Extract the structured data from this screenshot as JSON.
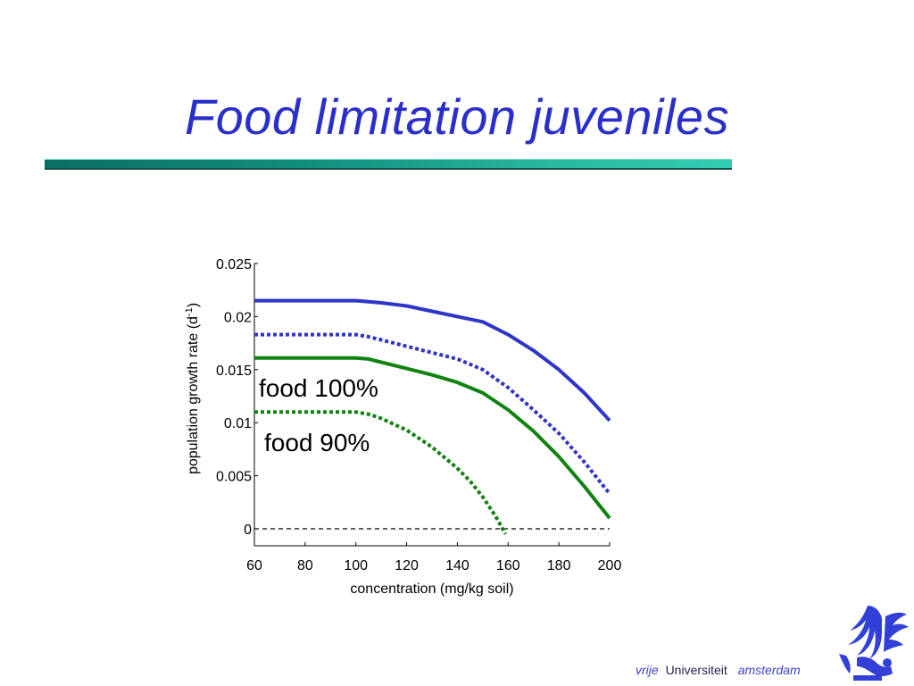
{
  "slide": {
    "title": "Food limitation juveniles"
  },
  "footer": {
    "vrije": "vrije",
    "universiteit": "Universiteit",
    "amsterdam": "amsterdam"
  },
  "logo_icon": "university-griffin-emblem",
  "chart_data": {
    "type": "line",
    "xlabel": "concentration (mg/kg soil)",
    "ylabel_main": "population growth rate (d",
    "ylabel_sup": "-1",
    "ylabel_end": ")",
    "xlim": [
      60,
      200
    ],
    "ylim": [
      -0.0015,
      0.025
    ],
    "xticks": [
      60,
      80,
      100,
      120,
      140,
      160,
      180,
      200
    ],
    "yticks": [
      0,
      0.005,
      0.01,
      0.015,
      0.02,
      0.025
    ],
    "xtick_labels": [
      "60",
      "80",
      "100",
      "120",
      "140",
      "160",
      "180",
      "200"
    ],
    "ytick_labels": [
      "0",
      "0.005",
      "0.01",
      "0.015",
      "0.02",
      "0.025"
    ],
    "grid": false,
    "annotations": [
      "food 100%",
      "food 90%"
    ],
    "zero_line": {
      "y": 0,
      "style": "dashed",
      "color": "#000000"
    },
    "series": [
      {
        "color": "#2e35c8",
        "style": "solid",
        "x": [
          60,
          100,
          105,
          110,
          120,
          130,
          140,
          150,
          160,
          170,
          180,
          190,
          200
        ],
        "y": [
          0.0215,
          0.0215,
          0.0214,
          0.0213,
          0.021,
          0.0205,
          0.02,
          0.0195,
          0.0183,
          0.0168,
          0.015,
          0.0128,
          0.0102
        ]
      },
      {
        "color": "#2e35c8",
        "style": "dotted",
        "x": [
          60,
          100,
          105,
          110,
          120,
          130,
          140,
          150,
          160,
          170,
          180,
          190,
          200
        ],
        "y": [
          0.0183,
          0.0183,
          0.0181,
          0.0178,
          0.0172,
          0.0166,
          0.016,
          0.015,
          0.0133,
          0.0112,
          0.009,
          0.0063,
          0.0033
        ]
      },
      {
        "color": "#118311",
        "style": "solid",
        "x": [
          60,
          100,
          105,
          110,
          120,
          130,
          140,
          150,
          160,
          170,
          180,
          190,
          200
        ],
        "y": [
          0.0161,
          0.0161,
          0.016,
          0.0157,
          0.0151,
          0.0145,
          0.0138,
          0.0128,
          0.0112,
          0.0092,
          0.0068,
          0.004,
          0.001
        ]
      },
      {
        "color": "#118311",
        "style": "dotted",
        "x": [
          60,
          100,
          105,
          110,
          120,
          130,
          140,
          145,
          150,
          155,
          159
        ],
        "y": [
          0.011,
          0.011,
          0.0108,
          0.0104,
          0.0093,
          0.0077,
          0.0057,
          0.0045,
          0.003,
          0.0012,
          -0.0005
        ]
      }
    ]
  }
}
